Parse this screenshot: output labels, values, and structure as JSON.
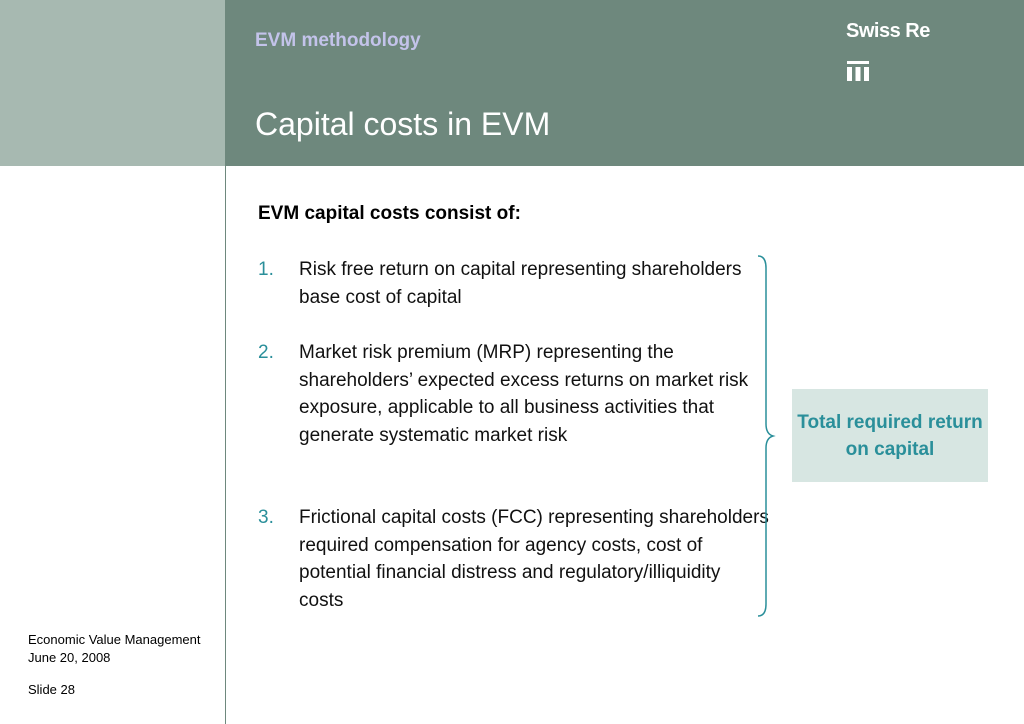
{
  "header": {
    "section_title": "EVM methodology",
    "page_title": "Capital costs in EVM",
    "logo_text": "Swiss Re",
    "logo_icon": "swiss-re-logo-icon",
    "colors": {
      "header_dark": "#6e887d",
      "header_light": "#a7b9b1",
      "accent": "#2a8f9a",
      "box": "#d7e6e2"
    }
  },
  "content": {
    "intro": "EVM capital costs consist of:",
    "items": [
      {
        "number": "1.",
        "text": "Risk free return on capital representing shareholders base cost of capital"
      },
      {
        "number": "2.",
        "text": "Market risk premium (MRP) representing the shareholders’ expected excess returns on market risk exposure, applicable to all business activities that generate systematic market risk"
      },
      {
        "number": "3.",
        "text": "Frictional capital costs (FCC) representing shareholders required compensation for agency costs, cost of potential financial distress and regulatory/illiquidity costs"
      }
    ],
    "callout": "Total required return on capital"
  },
  "footer": {
    "line1": "Economic Value Management",
    "line2": "June 20, 2008",
    "slide": "Slide 28"
  }
}
